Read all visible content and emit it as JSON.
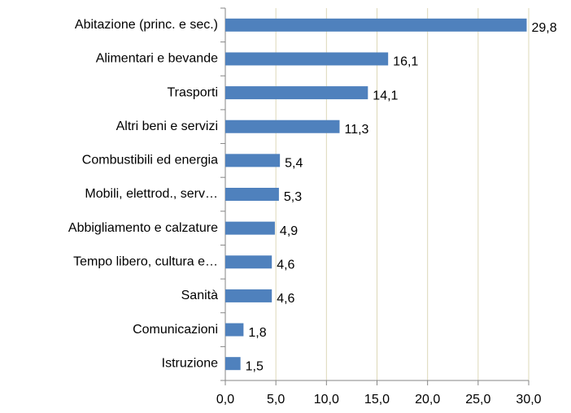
{
  "chart_data": {
    "type": "hbar",
    "categories": [
      "Abitazione (princ. e sec.)",
      "Alimentari e bevande",
      "Trasporti",
      "Altri beni e servizi",
      "Combustibili ed energia",
      "Mobili, elettrod., serv…",
      "Abbigliamento e calzature",
      "Tempo libero, cultura e…",
      "Sanità",
      "Comunicazioni",
      "Istruzione"
    ],
    "values": [
      29.8,
      16.1,
      14.1,
      11.3,
      5.4,
      5.3,
      4.9,
      4.6,
      4.6,
      1.8,
      1.5
    ],
    "value_labels": [
      "29,8",
      "16,1",
      "14,1",
      "11,3",
      "5,4",
      "5,3",
      "4,9",
      "4,6",
      "4,6",
      "1,8",
      "1,5"
    ],
    "color": "#4f81bd",
    "xlim": [
      0,
      30
    ],
    "xticks": [
      {
        "value": 0,
        "label": "0,0"
      },
      {
        "value": 5,
        "label": "5,0"
      },
      {
        "value": 10,
        "label": "10,0"
      },
      {
        "value": 15,
        "label": "15,0"
      },
      {
        "value": 20,
        "label": "20,0"
      },
      {
        "value": 25,
        "label": "25,0"
      },
      {
        "value": 30,
        "label": "30,0"
      }
    ],
    "grid": true
  }
}
